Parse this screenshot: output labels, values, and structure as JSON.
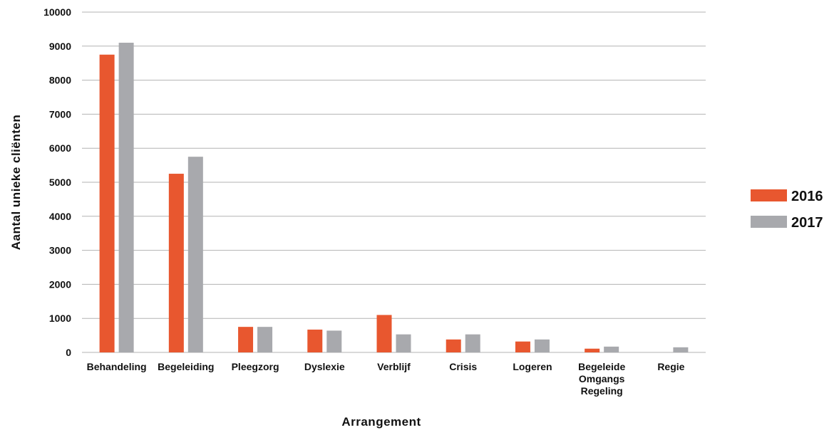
{
  "chart_data": {
    "type": "bar",
    "title": "",
    "xlabel": "Arrangement",
    "ylabel": "Aantal unieke cliënten",
    "ylim": [
      0,
      10000
    ],
    "yticks": [
      0,
      1000,
      2000,
      3000,
      4000,
      5000,
      6000,
      7000,
      8000,
      9000,
      10000
    ],
    "grid": true,
    "legend_position": "right",
    "categories": [
      [
        "Behandeling"
      ],
      [
        "Begeleiding"
      ],
      [
        "Pleegzorg"
      ],
      [
        "Dyslexie"
      ],
      [
        "Verblijf"
      ],
      [
        "Crisis"
      ],
      [
        "Logeren"
      ],
      [
        "Begeleide",
        "Omgangs",
        "Regeling"
      ],
      [
        "Regie"
      ]
    ],
    "series": [
      {
        "name": "2016",
        "color": "#e8572f",
        "values": [
          8750,
          5250,
          750,
          670,
          1100,
          380,
          320,
          110,
          0
        ]
      },
      {
        "name": "2017",
        "color": "#a8a9ad",
        "values": [
          9100,
          5750,
          750,
          640,
          530,
          530,
          380,
          170,
          150
        ]
      }
    ]
  }
}
